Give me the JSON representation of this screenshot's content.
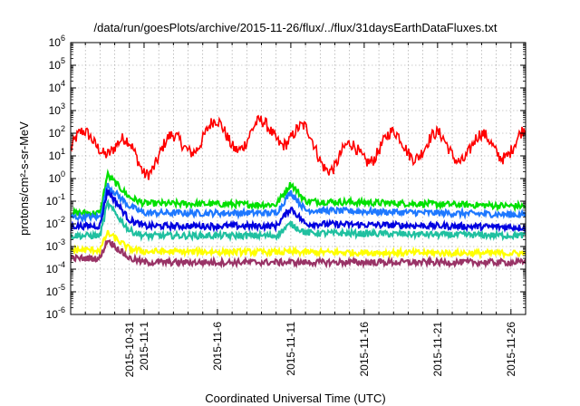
{
  "chart_data": {
    "type": "line",
    "title": "/data/run/goesPlots/archive/2015-11-26/flux/../flux/31daysEarthDataFluxes.txt",
    "xlabel": "Coordinated Universal Time (UTC)",
    "ylabel": "protons/cm²-s-sr-MeV",
    "yscale": "log",
    "ylim": [
      1e-06,
      1000000.0
    ],
    "xlim": [
      "2015-10-27T00:00",
      "2015-11-27T00:00"
    ],
    "x_ticks": [
      "2015-10-31",
      "2015-11-1",
      "2015-11-6",
      "2015-11-11",
      "2015-11-16",
      "2015-11-21",
      "2015-11-26"
    ],
    "y_ticks": [
      {
        "base": "10",
        "exp": "6"
      },
      {
        "base": "10",
        "exp": "5"
      },
      {
        "base": "10",
        "exp": "4"
      },
      {
        "base": "10",
        "exp": "3"
      },
      {
        "base": "10",
        "exp": "2"
      },
      {
        "base": "10",
        "exp": "1"
      },
      {
        "base": "10",
        "exp": "0"
      },
      {
        "base": "10",
        "exp": "-1"
      },
      {
        "base": "10",
        "exp": "-2"
      },
      {
        "base": "10",
        "exp": "-3"
      },
      {
        "base": "10",
        "exp": "-4"
      },
      {
        "base": "10",
        "exp": "-5"
      },
      {
        "base": "10",
        "exp": "-6"
      }
    ],
    "grid": true,
    "series": [
      {
        "color": "#ff0000",
        "x": [
          "2015-10-27",
          "2015-10-29",
          "2015-11-01",
          "2015-11-04",
          "2015-11-06",
          "2015-11-08",
          "2015-11-10",
          "2015-11-12",
          "2015-11-14",
          "2015-11-17",
          "2015-11-20",
          "2015-11-23",
          "2015-11-27"
        ],
        "values": [
          20,
          60,
          5,
          50,
          100,
          60,
          150,
          50,
          5,
          30,
          30,
          20,
          40
        ]
      },
      {
        "color": "#00e000",
        "x": [
          "2015-10-27",
          "2015-10-29",
          "2015-10-29T12:00",
          "2015-10-31",
          "2015-11-01",
          "2015-11-10",
          "2015-11-11",
          "2015-11-12",
          "2015-11-27"
        ],
        "values": [
          0.03,
          0.03,
          1.5,
          0.15,
          0.08,
          0.07,
          0.6,
          0.1,
          0.06
        ]
      },
      {
        "color": "#1e78ff",
        "x": [
          "2015-10-27",
          "2015-10-29",
          "2015-10-29T12:00",
          "2015-10-31",
          "2015-11-01",
          "2015-11-10",
          "2015-11-11",
          "2015-11-12",
          "2015-11-27"
        ],
        "values": [
          0.02,
          0.02,
          0.5,
          0.06,
          0.03,
          0.03,
          0.25,
          0.04,
          0.025
        ]
      },
      {
        "color": "#0000e0",
        "x": [
          "2015-10-27",
          "2015-10-29",
          "2015-10-29T12:00",
          "2015-10-31",
          "2015-11-01",
          "2015-11-10",
          "2015-11-11",
          "2015-11-12",
          "2015-11-27"
        ],
        "values": [
          0.008,
          0.008,
          0.3,
          0.015,
          0.008,
          0.008,
          0.05,
          0.01,
          0.007
        ]
      },
      {
        "color": "#20c0a0",
        "x": [
          "2015-10-27",
          "2015-10-29",
          "2015-10-29T12:00",
          "2015-10-31",
          "2015-11-01",
          "2015-11-10",
          "2015-11-11",
          "2015-11-12",
          "2015-11-27"
        ],
        "values": [
          0.003,
          0.003,
          0.08,
          0.005,
          0.003,
          0.003,
          0.01,
          0.004,
          0.003
        ]
      },
      {
        "color": "#ffff00",
        "x": [
          "2015-10-27",
          "2015-10-29",
          "2015-10-29T12:00",
          "2015-10-31",
          "2015-11-01",
          "2015-11-27"
        ],
        "values": [
          0.0007,
          0.0007,
          0.004,
          0.0008,
          0.0006,
          0.0005
        ]
      },
      {
        "color": "#993366",
        "x": [
          "2015-10-27",
          "2015-10-29",
          "2015-10-29T12:00",
          "2015-10-31",
          "2015-11-01",
          "2015-11-27"
        ],
        "values": [
          0.0003,
          0.0003,
          0.002,
          0.0003,
          0.0002,
          0.0002
        ]
      }
    ]
  }
}
